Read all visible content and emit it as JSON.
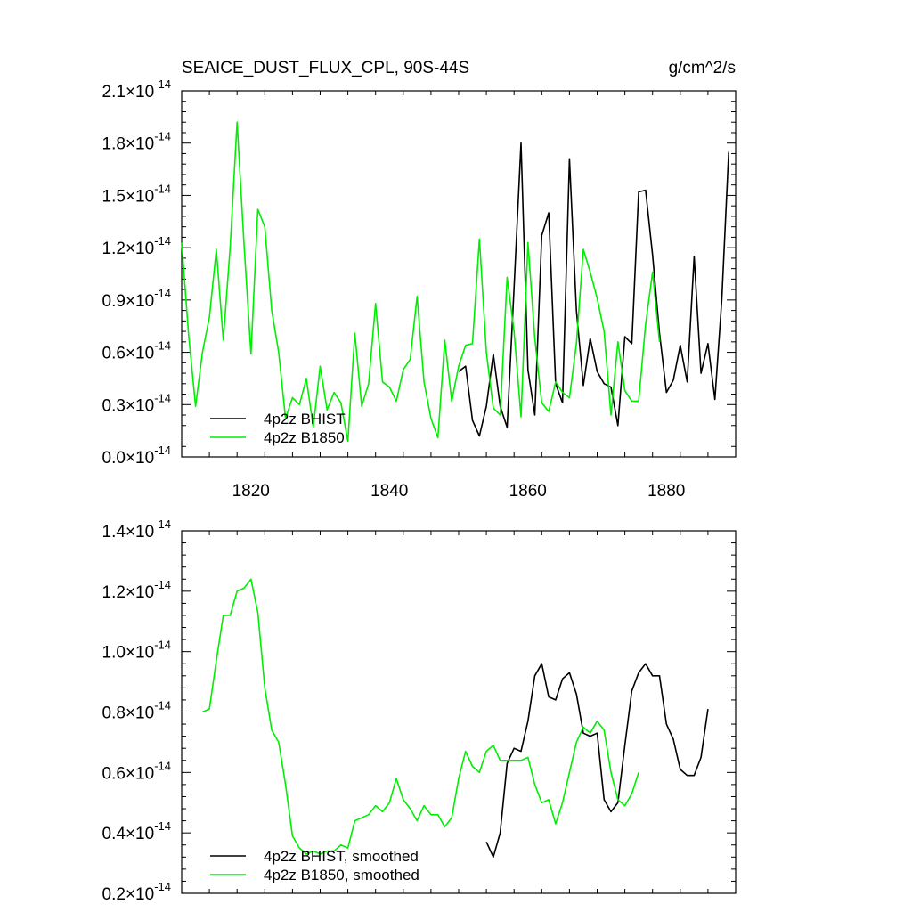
{
  "chart_data": [
    {
      "type": "line",
      "title": "SEAICE_DUST_FLUX_CPL, 90S-44S",
      "units": "g/cm^2/s",
      "xlim": [
        1810,
        1890
      ],
      "ylim": [
        0,
        2.1
      ],
      "y_exponent": "-14",
      "x_ticks": [
        1820,
        1840,
        1860,
        1880
      ],
      "y_ticks": [
        0.0,
        0.3,
        0.6,
        0.9,
        1.2,
        1.5,
        1.8,
        2.1
      ],
      "y_tick_labels": [
        "0.0",
        "0.3",
        "0.6",
        "0.9",
        "1.2",
        "1.5",
        "1.8",
        "2.1"
      ],
      "legend_position": "bottom-left",
      "series": [
        {
          "name": "4p2z BHIST",
          "color": "#000000",
          "x": [
            1850,
            1851,
            1852,
            1853,
            1854,
            1855,
            1856,
            1857,
            1858,
            1859,
            1860,
            1861,
            1862,
            1863,
            1864,
            1865,
            1866,
            1867,
            1868,
            1869,
            1870,
            1871,
            1872,
            1873,
            1874,
            1875,
            1876,
            1877,
            1878,
            1879,
            1880,
            1881,
            1882,
            1883,
            1884,
            1885,
            1886,
            1887,
            1888,
            1889
          ],
          "values": [
            0.49,
            0.52,
            0.21,
            0.12,
            0.29,
            0.59,
            0.29,
            0.17,
            0.97,
            1.8,
            0.5,
            0.24,
            1.27,
            1.4,
            0.42,
            0.31,
            1.71,
            0.84,
            0.41,
            0.68,
            0.49,
            0.42,
            0.4,
            0.18,
            0.69,
            0.65,
            1.52,
            1.53,
            1.16,
            0.71,
            0.37,
            0.44,
            0.64,
            0.43,
            1.15,
            0.48,
            0.65,
            0.33,
            0.9,
            1.75
          ]
        },
        {
          "name": "4p2z B1850",
          "color": "#00ee00",
          "x": [
            1810,
            1811,
            1812,
            1813,
            1814,
            1815,
            1816,
            1817,
            1818,
            1819,
            1820,
            1821,
            1822,
            1823,
            1824,
            1825,
            1826,
            1827,
            1828,
            1829,
            1830,
            1831,
            1832,
            1833,
            1834,
            1835,
            1836,
            1837,
            1838,
            1839,
            1840,
            1841,
            1842,
            1843,
            1844,
            1845,
            1846,
            1847,
            1848,
            1849,
            1850,
            1851,
            1852,
            1853,
            1854,
            1855,
            1856,
            1857,
            1858,
            1859,
            1860,
            1861,
            1862,
            1863,
            1864,
            1865,
            1866,
            1867,
            1868,
            1869,
            1870,
            1871,
            1872,
            1873,
            1874,
            1875,
            1876,
            1877,
            1878,
            1879
          ],
          "values": [
            1.23,
            0.7,
            0.29,
            0.6,
            0.8,
            1.19,
            0.67,
            1.2,
            1.92,
            1.22,
            0.59,
            1.42,
            1.32,
            0.84,
            0.6,
            0.22,
            0.34,
            0.3,
            0.45,
            0.17,
            0.52,
            0.27,
            0.37,
            0.31,
            0.09,
            0.71,
            0.29,
            0.42,
            0.88,
            0.43,
            0.4,
            0.32,
            0.5,
            0.56,
            0.92,
            0.43,
            0.22,
            0.11,
            0.67,
            0.32,
            0.52,
            0.64,
            0.65,
            1.25,
            0.6,
            0.28,
            0.24,
            1.03,
            0.72,
            0.23,
            1.23,
            0.68,
            0.31,
            0.26,
            0.43,
            0.37,
            0.34,
            0.65,
            1.19,
            1.06,
            0.91,
            0.72,
            0.24,
            0.66,
            0.38,
            0.32,
            0.32,
            0.76,
            1.06,
            0.66
          ]
        }
      ]
    },
    {
      "type": "line",
      "title": "",
      "xlim": [
        1810,
        1890
      ],
      "ylim": [
        0.2,
        1.4
      ],
      "y_exponent": "-14",
      "x_ticks": [
        1820,
        1840,
        1860,
        1880
      ],
      "y_ticks": [
        0.2,
        0.4,
        0.6,
        0.8,
        1.0,
        1.2,
        1.4
      ],
      "y_tick_labels": [
        "0.2",
        "0.4",
        "0.6",
        "0.8",
        "1.0",
        "1.2",
        "1.4"
      ],
      "legend_position": "bottom-left",
      "series": [
        {
          "name": "4p2z BHIST, smoothed",
          "color": "#000000",
          "x": [
            1854,
            1855,
            1856,
            1857,
            1858,
            1859,
            1860,
            1861,
            1862,
            1863,
            1864,
            1865,
            1866,
            1867,
            1868,
            1869,
            1870,
            1871,
            1872,
            1873,
            1874,
            1875,
            1876,
            1877,
            1878,
            1879,
            1880,
            1881,
            1882,
            1883,
            1884,
            1885,
            1886
          ],
          "values": [
            0.37,
            0.32,
            0.4,
            0.63,
            0.68,
            0.67,
            0.77,
            0.92,
            0.96,
            0.85,
            0.84,
            0.91,
            0.93,
            0.86,
            0.73,
            0.72,
            0.73,
            0.51,
            0.47,
            0.5,
            0.69,
            0.87,
            0.93,
            0.96,
            0.92,
            0.92,
            0.76,
            0.71,
            0.61,
            0.59,
            0.59,
            0.65,
            0.81
          ]
        },
        {
          "name": "4p2z B1850, smoothed",
          "color": "#00ee00",
          "x": [
            1813,
            1814,
            1815,
            1816,
            1817,
            1818,
            1819,
            1820,
            1821,
            1822,
            1823,
            1824,
            1825,
            1826,
            1827,
            1828,
            1829,
            1830,
            1831,
            1832,
            1833,
            1834,
            1835,
            1836,
            1837,
            1838,
            1839,
            1840,
            1841,
            1842,
            1843,
            1844,
            1845,
            1846,
            1847,
            1848,
            1849,
            1850,
            1851,
            1852,
            1853,
            1854,
            1855,
            1856,
            1857,
            1858,
            1859,
            1860,
            1861,
            1862,
            1863,
            1864,
            1865,
            1866,
            1867,
            1868,
            1869,
            1870,
            1871,
            1872,
            1873,
            1874,
            1875,
            1876
          ],
          "values": [
            0.8,
            0.81,
            0.97,
            1.12,
            1.12,
            1.2,
            1.21,
            1.24,
            1.13,
            0.88,
            0.74,
            0.7,
            0.56,
            0.39,
            0.35,
            0.33,
            0.34,
            0.33,
            0.34,
            0.34,
            0.36,
            0.35,
            0.44,
            0.45,
            0.46,
            0.49,
            0.47,
            0.5,
            0.58,
            0.51,
            0.48,
            0.44,
            0.49,
            0.46,
            0.46,
            0.42,
            0.45,
            0.58,
            0.67,
            0.62,
            0.6,
            0.67,
            0.69,
            0.64,
            0.64,
            0.64,
            0.64,
            0.65,
            0.56,
            0.5,
            0.51,
            0.43,
            0.5,
            0.6,
            0.7,
            0.75,
            0.73,
            0.77,
            0.74,
            0.6,
            0.51,
            0.49,
            0.53,
            0.6
          ]
        }
      ]
    }
  ]
}
